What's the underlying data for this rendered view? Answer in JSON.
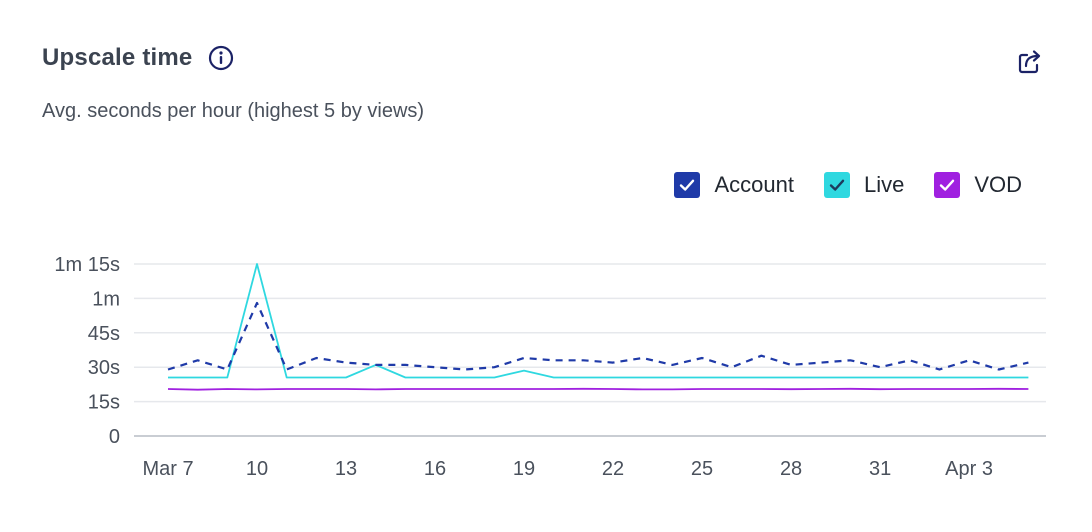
{
  "header": {
    "title": "Upscale time",
    "subtitle": "Avg. seconds per hour (highest 5 by views)",
    "info_icon": "info-circle-icon",
    "share_icon": "share-external-icon"
  },
  "colors": {
    "account": "#1f3aa8",
    "live": "#2fd8e0",
    "vod": "#a020e0",
    "grid": "#e6e8ec",
    "axis": "#c9cdd3"
  },
  "chart_data": {
    "type": "line",
    "title": "Upscale time",
    "subtitle": "Avg. seconds per hour (highest 5 by views)",
    "xlabel": "",
    "ylabel": "",
    "x": [
      "Mar 7",
      "Mar 8",
      "Mar 9",
      "Mar 10",
      "Mar 11",
      "Mar 12",
      "Mar 13",
      "Mar 14",
      "Mar 15",
      "Mar 16",
      "Mar 17",
      "Mar 18",
      "Mar 19",
      "Mar 20",
      "Mar 21",
      "Mar 22",
      "Mar 23",
      "Mar 24",
      "Mar 25",
      "Mar 26",
      "Mar 27",
      "Mar 28",
      "Mar 29",
      "Mar 30",
      "Mar 31",
      "Apr 1",
      "Apr 2",
      "Apr 3",
      "Apr 4",
      "Apr 5"
    ],
    "x_tick_labels": [
      "Mar 7",
      "10",
      "13",
      "16",
      "19",
      "22",
      "25",
      "28",
      "31",
      "Apr 3"
    ],
    "y_ticks": [
      0,
      15,
      30,
      45,
      60,
      75
    ],
    "y_tick_labels": [
      "0",
      "15s",
      "30s",
      "45s",
      "1m",
      "1m 15s"
    ],
    "ylim": [
      0,
      75
    ],
    "grid": true,
    "legend_position": "top-right",
    "series": [
      {
        "name": "Account",
        "key": "account",
        "style": "dashed",
        "checked": true,
        "values": [
          29,
          33,
          29,
          58,
          29,
          34,
          32,
          31,
          31,
          30,
          29,
          30,
          34,
          33,
          33,
          32,
          34,
          31,
          34,
          30,
          35,
          31,
          32,
          33,
          30,
          33,
          29,
          33,
          29,
          32
        ]
      },
      {
        "name": "Live",
        "key": "live",
        "style": "solid",
        "checked": true,
        "values": [
          25.5,
          25.5,
          25.5,
          75,
          25.5,
          25.5,
          25.5,
          31,
          25.5,
          25.5,
          25.5,
          25.5,
          28.5,
          25.5,
          25.5,
          25.5,
          25.5,
          25.5,
          25.5,
          25.5,
          25.5,
          25.5,
          25.5,
          25.5,
          25.5,
          25.5,
          25.5,
          25.5,
          25.5,
          25.5
        ]
      },
      {
        "name": "VOD",
        "key": "vod",
        "style": "solid",
        "checked": true,
        "values": [
          20.5,
          20.2,
          20.5,
          20.3,
          20.5,
          20.5,
          20.5,
          20.3,
          20.5,
          20.5,
          20.5,
          20.5,
          20.5,
          20.5,
          20.6,
          20.5,
          20.3,
          20.3,
          20.5,
          20.5,
          20.5,
          20.4,
          20.5,
          20.6,
          20.4,
          20.5,
          20.5,
          20.5,
          20.6,
          20.5
        ]
      }
    ]
  }
}
